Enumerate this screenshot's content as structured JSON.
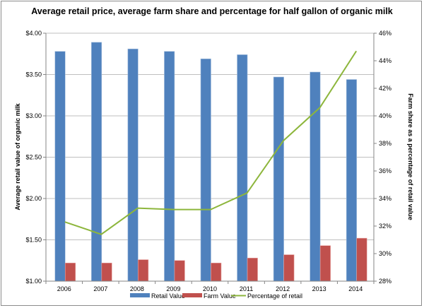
{
  "chart_data": {
    "type": "bar",
    "title": "Average retail price, average farm share and percentage for half gallon of organic milk",
    "xlabel": "",
    "ylabel": "Average retail value of organic milk",
    "y2label": "Farm share as a percentage of retail value",
    "categories": [
      "2006",
      "2007",
      "2008",
      "2009",
      "2010",
      "2011",
      "2012",
      "2013",
      "2014"
    ],
    "ylim": [
      1.0,
      4.0
    ],
    "y_ticks": [
      "$1.00",
      "$1.50",
      "$2.00",
      "$2.50",
      "$3.00",
      "$3.50",
      "$4.00"
    ],
    "y2lim": [
      28,
      46
    ],
    "y2_ticks": [
      "28%",
      "30%",
      "32%",
      "34%",
      "36%",
      "38%",
      "40%",
      "42%",
      "44%",
      "46%"
    ],
    "grid": true,
    "legend_position": "bottom",
    "series": [
      {
        "name": "Retail Value",
        "kind": "bar",
        "axis": "left",
        "color": "#4f81bd",
        "values": [
          3.78,
          3.89,
          3.81,
          3.78,
          3.69,
          3.74,
          3.47,
          3.53,
          3.44
        ]
      },
      {
        "name": "Farm Value",
        "kind": "bar",
        "axis": "left",
        "color": "#c0504d",
        "values": [
          1.22,
          1.22,
          1.26,
          1.25,
          1.22,
          1.28,
          1.32,
          1.43,
          1.52
        ]
      },
      {
        "name": "Percentage of retail",
        "kind": "line",
        "axis": "right",
        "color": "#8db63c",
        "values": [
          32.3,
          31.4,
          33.3,
          33.2,
          33.2,
          34.4,
          38.2,
          40.6,
          44.7
        ]
      }
    ]
  }
}
